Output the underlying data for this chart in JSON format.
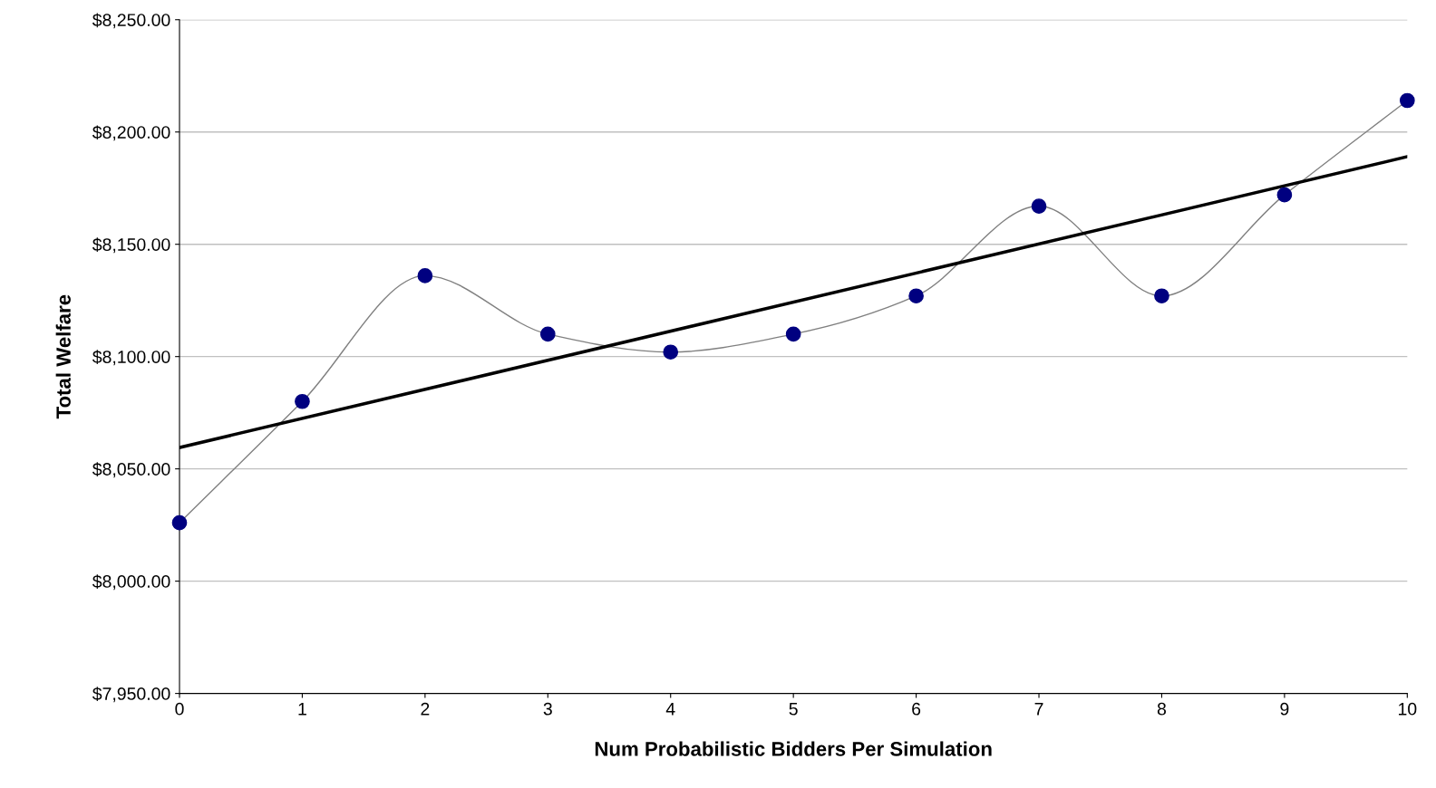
{
  "chart_data": {
    "type": "line",
    "xlabel": "Num Probabilistic Bidders Per Simulation",
    "ylabel": "Total Welfare",
    "series": [
      {
        "color": "#000080",
        "marker": "circle",
        "x": [
          0,
          1,
          2,
          3,
          4,
          5,
          6,
          7,
          8,
          9,
          10
        ],
        "values": [
          8026,
          8080,
          8136,
          8110,
          8102,
          8110,
          8127,
          8167,
          8127,
          8172,
          8214
        ]
      },
      {
        "type": "line",
        "color": "#000000",
        "x": [
          0,
          10
        ],
        "values": [
          8059.5,
          8189
        ]
      }
    ],
    "xlim": [
      0,
      10
    ],
    "xticks": [
      0,
      1,
      2,
      3,
      4,
      5,
      6,
      7,
      8,
      9,
      10
    ],
    "ylim": [
      7950,
      8250
    ],
    "yticks": [
      {
        "value": 7950,
        "label": "$7,950.00"
      },
      {
        "value": 8000,
        "label": "$8,000.00"
      },
      {
        "value": 8050,
        "label": "$8,050.00"
      },
      {
        "value": 8100,
        "label": "$8,100.00"
      },
      {
        "value": 8150,
        "label": "$8,150.00"
      },
      {
        "value": 8200,
        "label": "$8,200.00"
      },
      {
        "value": 8250,
        "label": "$8,250.00"
      }
    ],
    "grid": "y"
  }
}
